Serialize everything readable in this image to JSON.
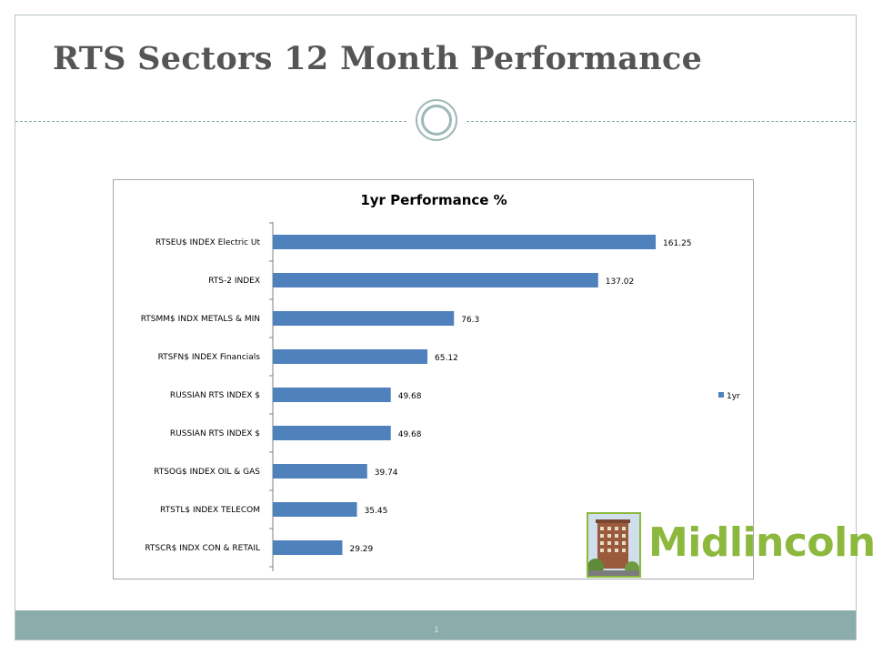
{
  "slide": {
    "title": "RTS Sectors 12 Month Performance",
    "page_number": "1"
  },
  "logo": {
    "text": "Midlincoln"
  },
  "colors": {
    "bar": "#4f81bd",
    "logo_green": "#8cb83e",
    "footer_band": "#8aacab",
    "ornament": "#9db9b6"
  },
  "chart_data": {
    "type": "bar",
    "orientation": "horizontal",
    "title": "1yr Performance %",
    "xlabel": "",
    "ylabel": "",
    "grid": false,
    "legend_position": "right",
    "xlim": [
      0,
      180
    ],
    "categories": [
      "RTSEU$ INDEX Electric Ut",
      "RTS-2 INDEX",
      "RTSMM$ INDX  METALS & MIN",
      "RTSFN$ INDEX  Financials",
      "RUSSIAN RTS INDEX $",
      "RUSSIAN RTS INDEX $",
      "RTSOG$ INDEX OIL & GAS",
      "RTSTL$ INDEX TELECOM",
      "RTSCR$ INDX CON & RETAIL"
    ],
    "series": [
      {
        "name": "1yr",
        "values": [
          161.25,
          137.02,
          76.3,
          65.12,
          49.68,
          49.68,
          39.74,
          35.45,
          29.29
        ],
        "labels": [
          "161.25",
          "137.02",
          "76.3",
          "65.12",
          "49.68",
          "49.68",
          "39.74",
          "35.45",
          "29.29"
        ]
      }
    ]
  }
}
